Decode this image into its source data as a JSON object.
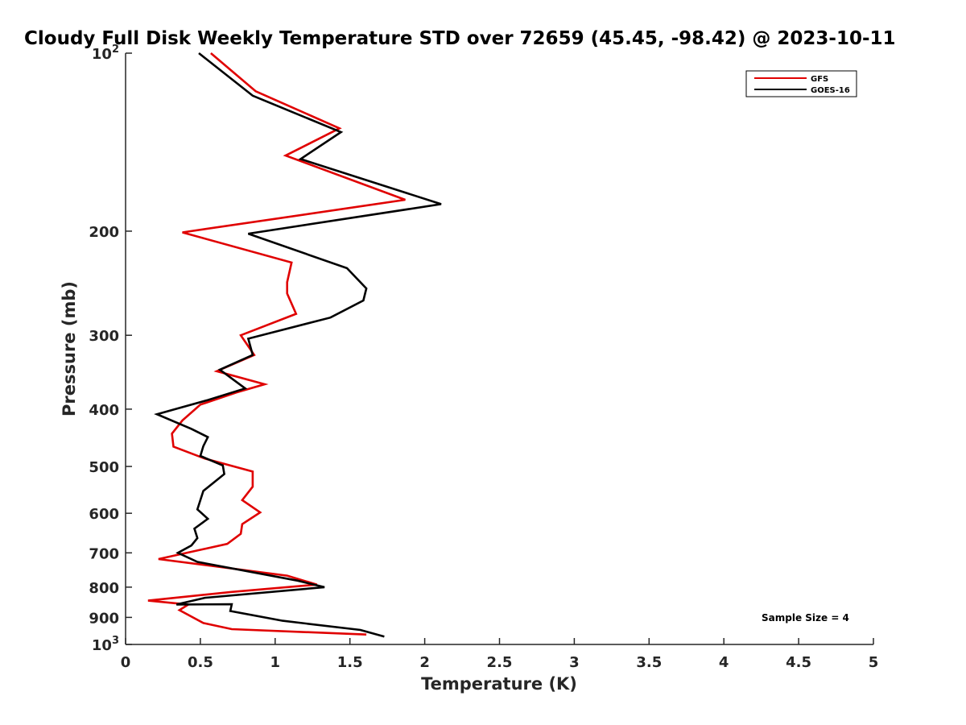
{
  "chart_data": {
    "type": "line",
    "title": "Cloudy Full Disk Weekly Temperature STD over 72659 (45.45, -98.42) @ 2023-10-11",
    "xlabel": "Temperature (K)",
    "ylabel": "Pressure (mb)",
    "xlim": [
      0,
      5
    ],
    "ylim": [
      1000,
      100
    ],
    "y_scale": "log",
    "x_ticks": [
      "0",
      "0.5",
      "1",
      "1.5",
      "2",
      "2.5",
      "3",
      "3.5",
      "4",
      "4.5",
      "5"
    ],
    "y_ticks": [
      {
        "value": 100,
        "base": "10",
        "exp": "2"
      },
      {
        "value": 200,
        "label": "200"
      },
      {
        "value": 300,
        "label": "300"
      },
      {
        "value": 400,
        "label": "400"
      },
      {
        "value": 500,
        "label": "500"
      },
      {
        "value": 600,
        "label": "600"
      },
      {
        "value": 700,
        "label": "700"
      },
      {
        "value": 800,
        "label": "800"
      },
      {
        "value": 900,
        "label": "900"
      },
      {
        "value": 1000,
        "base": "10",
        "exp": "3"
      }
    ],
    "grid": false,
    "legend_position": "top-right",
    "series": [
      {
        "name": "GFS",
        "color": "#e00000",
        "points": [
          [
            0.57,
            100
          ],
          [
            0.87,
            116
          ],
          [
            1.43,
            134
          ],
          [
            1.07,
            149
          ],
          [
            1.87,
            177
          ],
          [
            0.38,
            201
          ],
          [
            1.11,
            226
          ],
          [
            1.08,
            244
          ],
          [
            1.08,
            255
          ],
          [
            1.14,
            276
          ],
          [
            0.77,
            300
          ],
          [
            0.86,
            324
          ],
          [
            0.61,
            345
          ],
          [
            0.93,
            363
          ],
          [
            0.74,
            375
          ],
          [
            0.5,
            393
          ],
          [
            0.38,
            418
          ],
          [
            0.31,
            440
          ],
          [
            0.32,
            463
          ],
          [
            0.53,
            485
          ],
          [
            0.85,
            510
          ],
          [
            0.85,
            541
          ],
          [
            0.78,
            570
          ],
          [
            0.9,
            598
          ],
          [
            0.78,
            626
          ],
          [
            0.77,
            650
          ],
          [
            0.68,
            676
          ],
          [
            0.22,
            717
          ],
          [
            1.08,
            765
          ],
          [
            1.28,
            792
          ],
          [
            0.71,
            815
          ],
          [
            0.15,
            843
          ],
          [
            0.42,
            856
          ],
          [
            0.36,
            875
          ],
          [
            0.52,
            920
          ],
          [
            0.71,
            942
          ],
          [
            1.61,
            962
          ]
        ]
      },
      {
        "name": "GOES-16",
        "color": "#000000",
        "points": [
          [
            0.49,
            100
          ],
          [
            0.85,
            118
          ],
          [
            1.44,
            136
          ],
          [
            1.17,
            151
          ],
          [
            2.11,
            180
          ],
          [
            0.82,
            202
          ],
          [
            1.48,
            231
          ],
          [
            1.61,
            250
          ],
          [
            1.59,
            262
          ],
          [
            1.37,
            280
          ],
          [
            0.82,
            304
          ],
          [
            0.85,
            324
          ],
          [
            0.63,
            343
          ],
          [
            0.8,
            369
          ],
          [
            0.55,
            386
          ],
          [
            0.21,
            408
          ],
          [
            0.44,
            432
          ],
          [
            0.55,
            446
          ],
          [
            0.52,
            462
          ],
          [
            0.5,
            480
          ],
          [
            0.65,
            498
          ],
          [
            0.66,
            515
          ],
          [
            0.52,
            550
          ],
          [
            0.48,
            591
          ],
          [
            0.55,
            613
          ],
          [
            0.46,
            637
          ],
          [
            0.48,
            661
          ],
          [
            0.44,
            680
          ],
          [
            0.35,
            700
          ],
          [
            0.48,
            725
          ],
          [
            1.15,
            780
          ],
          [
            1.33,
            800
          ],
          [
            0.53,
            834
          ],
          [
            0.34,
            856
          ],
          [
            0.71,
            855
          ],
          [
            0.7,
            878
          ],
          [
            1.05,
            912
          ],
          [
            1.57,
            945
          ],
          [
            1.73,
            970
          ]
        ]
      }
    ],
    "annotations": [
      {
        "text": "Sample Size = 4",
        "position": "bottom-right"
      }
    ]
  }
}
